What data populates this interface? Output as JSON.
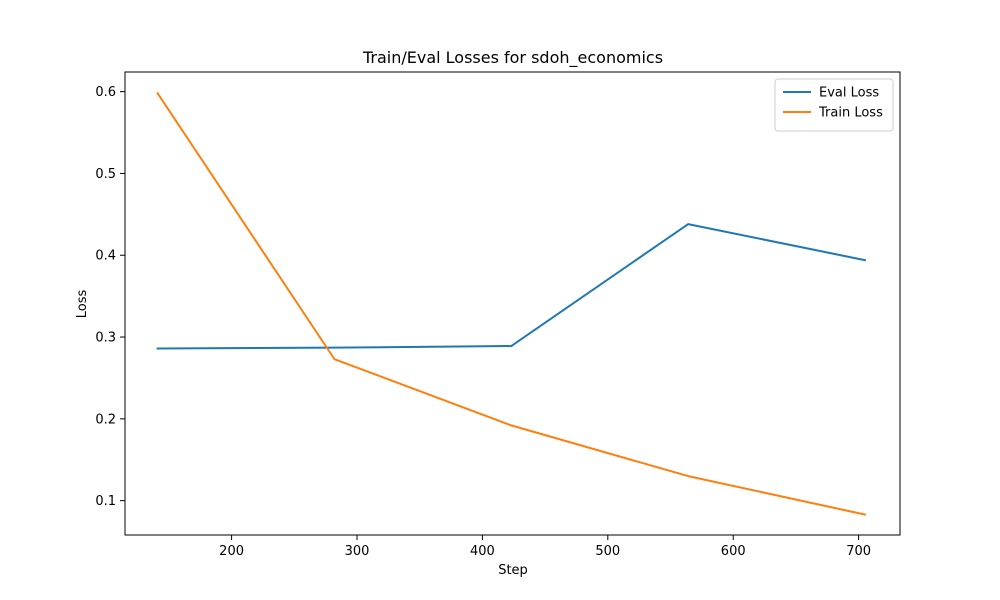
{
  "chart_data": {
    "type": "line",
    "title": "Train/Eval Losses for sdoh_economics",
    "xlabel": "Step",
    "ylabel": "Loss",
    "xlim": [
      115,
      733
    ],
    "ylim": [
      0.058,
      0.624
    ],
    "xticks": [
      200,
      300,
      400,
      500,
      600,
      700
    ],
    "yticks": [
      0.1,
      0.2,
      0.3,
      0.4,
      0.5,
      0.6
    ],
    "xtick_labels": [
      "200",
      "300",
      "400",
      "500",
      "600",
      "700"
    ],
    "ytick_labels": [
      "0.1",
      "0.2",
      "0.3",
      "0.4",
      "0.5",
      "0.6"
    ],
    "grid": false,
    "legend_position": "top-right",
    "series": [
      {
        "name": "Eval Loss",
        "color": "#1f77b4",
        "x": [
          141,
          282,
          423,
          564,
          705
        ],
        "y": [
          0.286,
          0.287,
          0.289,
          0.438,
          0.394
        ]
      },
      {
        "name": "Train Loss",
        "color": "#ff7f0e",
        "x": [
          141,
          282,
          423,
          564,
          705
        ],
        "y": [
          0.598,
          0.273,
          0.192,
          0.13,
          0.083
        ]
      }
    ]
  }
}
